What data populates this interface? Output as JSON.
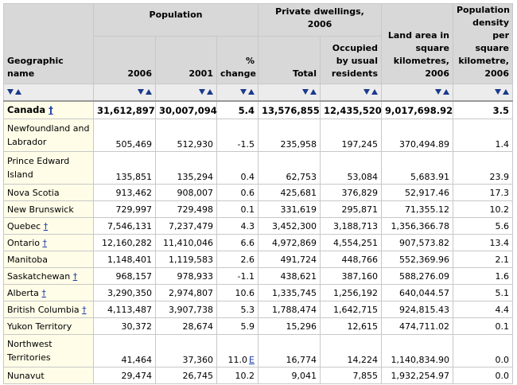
{
  "headers": {
    "geo": "Geographic name",
    "population": "Population",
    "pop_2006": "2006",
    "pop_2001": "2001",
    "pop_change": "% change",
    "dwellings": "Private dwellings, 2006",
    "dw_total": "Total",
    "dw_occupied": "Occupied by usual residents",
    "land_area": "Land area in square kilometres, 2006",
    "density": "Population density per square kilometre, 2006"
  },
  "sort_icons": {
    "down": "sort-descending-icon",
    "up": "sort-ascending-icon"
  },
  "footnote_symbol": "†",
  "flag_symbol": "E",
  "colors": {
    "header_bg": "#d8d8d8",
    "name_bg": "#fffde8",
    "link": "#1a3aa8"
  },
  "rows": [
    {
      "name": "Canada",
      "footnote": true,
      "pop2006": "31,612,897",
      "pop2001": "30,007,094",
      "change": "5.4",
      "total": "13,576,855",
      "occupied": "12,435,520",
      "area": "9,017,698.92",
      "density": "3.5"
    },
    {
      "name": "Newfoundland and Labrador",
      "footnote": false,
      "pop2006": "505,469",
      "pop2001": "512,930",
      "change": "-1.5",
      "total": "235,958",
      "occupied": "197,245",
      "area": "370,494.89",
      "density": "1.4"
    },
    {
      "name": "Prince Edward Island",
      "footnote": false,
      "pop2006": "135,851",
      "pop2001": "135,294",
      "change": "0.4",
      "total": "62,753",
      "occupied": "53,084",
      "area": "5,683.91",
      "density": "23.9"
    },
    {
      "name": "Nova Scotia",
      "footnote": false,
      "pop2006": "913,462",
      "pop2001": "908,007",
      "change": "0.6",
      "total": "425,681",
      "occupied": "376,829",
      "area": "52,917.46",
      "density": "17.3"
    },
    {
      "name": "New Brunswick",
      "footnote": false,
      "pop2006": "729,997",
      "pop2001": "729,498",
      "change": "0.1",
      "total": "331,619",
      "occupied": "295,871",
      "area": "71,355.12",
      "density": "10.2"
    },
    {
      "name": "Quebec",
      "footnote": true,
      "pop2006": "7,546,131",
      "pop2001": "7,237,479",
      "change": "4.3",
      "total": "3,452,300",
      "occupied": "3,188,713",
      "area": "1,356,366.78",
      "density": "5.6"
    },
    {
      "name": "Ontario",
      "footnote": true,
      "pop2006": "12,160,282",
      "pop2001": "11,410,046",
      "change": "6.6",
      "total": "4,972,869",
      "occupied": "4,554,251",
      "area": "907,573.82",
      "density": "13.4"
    },
    {
      "name": "Manitoba",
      "footnote": false,
      "pop2006": "1,148,401",
      "pop2001": "1,119,583",
      "change": "2.6",
      "total": "491,724",
      "occupied": "448,766",
      "area": "552,369.96",
      "density": "2.1"
    },
    {
      "name": "Saskatchewan",
      "footnote": true,
      "pop2006": "968,157",
      "pop2001": "978,933",
      "change": "-1.1",
      "total": "438,621",
      "occupied": "387,160",
      "area": "588,276.09",
      "density": "1.6"
    },
    {
      "name": "Alberta",
      "footnote": true,
      "pop2006": "3,290,350",
      "pop2001": "2,974,807",
      "change": "10.6",
      "total": "1,335,745",
      "occupied": "1,256,192",
      "area": "640,044.57",
      "density": "5.1"
    },
    {
      "name": "British Columbia",
      "footnote": true,
      "pop2006": "4,113,487",
      "pop2001": "3,907,738",
      "change": "5.3",
      "total": "1,788,474",
      "occupied": "1,642,715",
      "area": "924,815.43",
      "density": "4.4"
    },
    {
      "name": "Yukon Territory",
      "footnote": false,
      "pop2006": "30,372",
      "pop2001": "28,674",
      "change": "5.9",
      "total": "15,296",
      "occupied": "12,615",
      "area": "474,711.02",
      "density": "0.1"
    },
    {
      "name": "Northwest Territories",
      "footnote": false,
      "pop2006": "41,464",
      "pop2001": "37,360",
      "change": "11.0",
      "flag": true,
      "total": "16,774",
      "occupied": "14,224",
      "area": "1,140,834.90",
      "density": "0.0"
    },
    {
      "name": "Nunavut",
      "footnote": false,
      "pop2006": "29,474",
      "pop2001": "26,745",
      "change": "10.2",
      "total": "9,041",
      "occupied": "7,855",
      "area": "1,932,254.97",
      "density": "0.0"
    }
  ]
}
